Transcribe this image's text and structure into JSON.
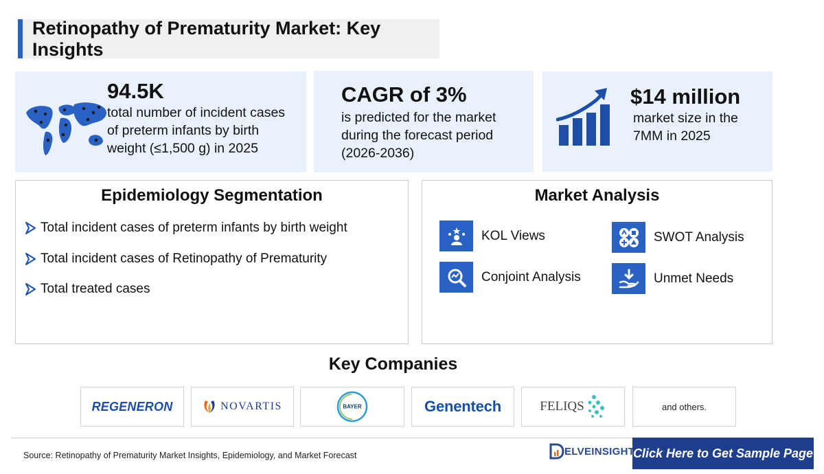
{
  "title": "Retinopathy of Prematurity Market: Key Insights",
  "stats": [
    {
      "value": "94.5K",
      "lines": [
        "total number of incident cases",
        "of preterm infants by birth",
        "weight (≤1,500 g) in 2025"
      ],
      "icon": "world-map-icon"
    },
    {
      "value": "CAGR of 3%",
      "lines": [
        "is predicted for the market",
        "during the forecast period",
        "(2026-2036)"
      ]
    },
    {
      "value": "$14 million",
      "lines": [
        "market size in the",
        "7MM in 2025"
      ],
      "icon": "growth-chart-icon"
    }
  ],
  "epidemiology": {
    "title": "Epidemiology Segmentation",
    "items": [
      "Total incident cases of preterm infants by birth weight",
      "Total incident cases of Retinopathy of Prematurity",
      "Total treated cases"
    ]
  },
  "market_analysis": {
    "title": "Market Analysis",
    "items": [
      {
        "label": "KOL Views",
        "icon": "kol-icon"
      },
      {
        "label": "SWOT Analysis",
        "icon": "swot-icon"
      },
      {
        "label": "Conjoint Analysis",
        "icon": "conjoint-icon"
      },
      {
        "label": "Unmet Needs",
        "icon": "unmet-needs-icon"
      }
    ]
  },
  "key_companies": {
    "title": "Key Companies",
    "logos": {
      "regeneron": "REGENERON",
      "novartis": "NOVARTIS",
      "bayer": "BAYER",
      "genentech": "Genentech",
      "feliqs": "FELIQS"
    },
    "others": "and others."
  },
  "footer": {
    "source": "Source: Retinopathy of Prematurity Market Insights, Epidemiology, and Market Forecast",
    "brand": "ELVEINSIGHT",
    "cta": "Click Here to Get Sample Page"
  },
  "colors": {
    "accent": "#2a62c4",
    "cta": "#1e3f8e",
    "card_bg": "#e9f2fc"
  }
}
